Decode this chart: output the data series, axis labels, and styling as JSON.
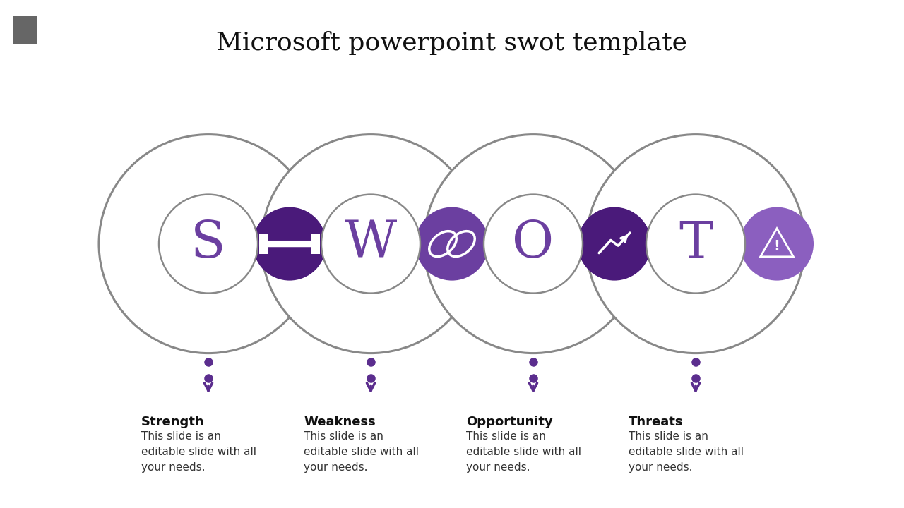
{
  "title": "Microsoft powerpoint swot template",
  "title_fontsize": 26,
  "title_color": "#111111",
  "background_color": "#ffffff",
  "categories": [
    "S",
    "W",
    "O",
    "T"
  ],
  "labels": [
    "Strength",
    "Weakness",
    "Opportunity",
    "Threats"
  ],
  "descriptions": [
    "This slide is an\neditable slide with all\nyour needs.",
    "This slide is an\neditable slide with all\nyour needs.",
    "This slide is an\neditable slide with all\nyour needs.",
    "This slide is an\neditable slide with all\nyour needs."
  ],
  "circle_color": "#888888",
  "purple_dark": "#4a1a7a",
  "purple_mid": "#6b3fa0",
  "purple_light": "#8b5fbf",
  "purple_color": "#5b2d8e",
  "label_color": "#111111",
  "desc_color": "#333333",
  "label_fontsize": 13,
  "desc_fontsize": 11,
  "circle_lw": 2.2,
  "gray_rect_color": "#666666",
  "fig_width": 12.8,
  "fig_height": 7.2,
  "dpi": 100
}
